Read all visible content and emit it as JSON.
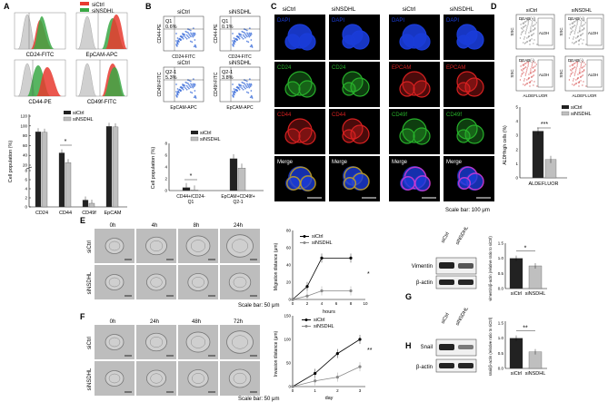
{
  "panels": {
    "A": {
      "letter": "A",
      "legend": [
        "siCtrl",
        "siNSDHL"
      ],
      "histograms": [
        "CD24-FITC",
        "EpCAM-APC",
        "CD44-PE",
        "CD49f-FITC"
      ],
      "bar_legend": [
        "siCtrl",
        "siNSDHL"
      ],
      "ylabel": "Cell population (%)",
      "yticks": [
        "0",
        "2",
        "4",
        "6",
        "8",
        "20",
        "40",
        "60",
        "80",
        "100",
        "120"
      ],
      "categories": [
        "CD24",
        "CD44",
        "CD49f",
        "EpCAM"
      ],
      "sig": "*"
    },
    "B": {
      "letter": "B",
      "plots": [
        {
          "title": "siCtrl",
          "quad": "Q1",
          "value": "0.6%",
          "ylab": "CD44-PE",
          "xlab": "CD24-FITC"
        },
        {
          "title": "siNSDHL",
          "quad": "Q1",
          "value": "0.1%",
          "ylab": "CD44-PE",
          "xlab": "CD24-FITC"
        },
        {
          "title": "siCtrl",
          "quad": "Q2-1",
          "value": "5.3%",
          "ylab": "CD49f-FITC",
          "xlab": "EpCAM-APC"
        },
        {
          "title": "siNSDHL",
          "quad": "Q2-1",
          "value": "3.8%",
          "ylab": "CD49f-FITC",
          "xlab": "EpCAM-APC"
        }
      ],
      "bar_legend": [
        "siCtrl",
        "siNSDHL"
      ],
      "ylabel": "Cell population (%)",
      "yticks": [
        "0",
        "2",
        "4",
        "6",
        "8"
      ],
      "categories": [
        "CD44+/CD24-",
        "Q1",
        "EpCAM+CD49f+",
        "Q2-1"
      ],
      "sig": "*"
    },
    "C": {
      "letter": "C",
      "col_headers": [
        "siCtrl",
        "siNSDHL",
        "siCtrl",
        "siNSDHL"
      ],
      "left_labels": [
        "DAPI",
        "CD24",
        "CD44",
        "Merge"
      ],
      "right_labels": [
        "DAPI",
        "EPCAM",
        "CD49f",
        "Merge"
      ],
      "scale": "Scale bar: 100 μm"
    },
    "D": {
      "letter": "D",
      "headers": [
        "siCtrl",
        "siNSDHL"
      ],
      "gates": [
        "DEAB(+)",
        "DEAB(+)",
        "DEAB(-)",
        "DEAB(-)"
      ],
      "gate_label": "ALDH",
      "ssc": "SSC",
      "xaxis": "ALDEFLUOR",
      "bar_legend": [
        "siCtrl",
        "siNSDHL"
      ],
      "ylabel": "ALDHhigh cells (%)",
      "yticks": [
        "0",
        "1",
        "2",
        "3",
        "4",
        "5"
      ],
      "category": "ALDEFLUOR",
      "sig": "***"
    },
    "E": {
      "letter": "E",
      "times": [
        "0h",
        "4h",
        "8h",
        "24h"
      ],
      "rows": [
        "siCtrl",
        "siNSDHL"
      ],
      "scale": "Scale bar: 50 μm",
      "legend": [
        "siCtrl",
        "siNSDHL"
      ],
      "ylabel": "Migration distance (μm)",
      "xlabel": "hours",
      "yticks": [
        "0",
        "20",
        "40",
        "60",
        "80"
      ],
      "xticks": [
        "0",
        "2",
        "4",
        "6",
        "8",
        "10"
      ],
      "sig": "*"
    },
    "F": {
      "letter": "F",
      "times": [
        "0h",
        "24h",
        "48h",
        "72h"
      ],
      "rows": [
        "siCtrl",
        "siNSDHL"
      ],
      "scale": "Scale bar: 50 μm",
      "legend": [
        "siCtrl",
        "siNSDHL"
      ],
      "ylabel": "Invasion distance (μm)",
      "xlabel": "day",
      "yticks": [
        "0",
        "50",
        "100",
        "150"
      ],
      "xticks": [
        "0",
        "1",
        "2",
        "3"
      ],
      "sig": "**"
    },
    "G": {
      "letter": "G",
      "lanes": [
        "siCtrl",
        "siNSDHL"
      ],
      "bands": [
        "Vimentin",
        "β-actin"
      ],
      "ylabel": "vimentin/β-actin (relative ratio to siCtrl)",
      "yticks": [
        "0.0",
        "0.5",
        "1.0",
        "1.5"
      ],
      "categories": [
        "siCtrl",
        "siNSDHL"
      ],
      "sig": "*"
    },
    "H": {
      "letter": "H",
      "lanes": [
        "siCtrl",
        "siNSDHL"
      ],
      "bands": [
        "Snail",
        "β-actin"
      ],
      "ylabel": "snail/β-actin (relative ratio to siCtrl)",
      "yticks": [
        "0.0",
        "0.5",
        "1.0",
        "1.5"
      ],
      "categories": [
        "siCtrl",
        "siNSDHL"
      ],
      "sig": "**"
    }
  },
  "colors": {
    "ctrl": "#e8392f",
    "nsdhl": "#3aa845",
    "bar_ctrl": "#222222",
    "bar_nsdhl": "#bfbfbf",
    "dapi": "#1a3cd8",
    "green": "#27b02a",
    "red": "#d62020"
  },
  "chart_data": [
    {
      "type": "bar",
      "panel": "A",
      "categories": [
        "CD24",
        "CD44",
        "CD49f",
        "EpCAM"
      ],
      "series": [
        {
          "name": "siCtrl",
          "values": [
            88,
            45,
            1.5,
            99
          ]
        },
        {
          "name": "siNSDHL",
          "values": [
            87,
            25,
            0.8,
            98
          ]
        }
      ],
      "ylabel": "Cell population (%)"
    },
    {
      "type": "bar",
      "panel": "B",
      "categories": [
        "CD44+/CD24- Q1",
        "EpCAM+CD49f+ Q2-1"
      ],
      "series": [
        {
          "name": "siCtrl",
          "values": [
            0.5,
            5.4
          ]
        },
        {
          "name": "siNSDHL",
          "values": [
            0.1,
            3.8
          ]
        }
      ],
      "ylabel": "Cell population (%)",
      "ylim": [
        0,
        8
      ]
    },
    {
      "type": "bar",
      "panel": "D",
      "categories": [
        "ALDEFLUOR"
      ],
      "series": [
        {
          "name": "siCtrl",
          "values": [
            3.3
          ]
        },
        {
          "name": "siNSDHL",
          "values": [
            1.3
          ]
        }
      ],
      "ylabel": "ALDHhigh cells (%)",
      "ylim": [
        0,
        5
      ]
    },
    {
      "type": "line",
      "panel": "E",
      "x": [
        0,
        4,
        8,
        24
      ],
      "series": [
        {
          "name": "siCtrl",
          "values": [
            0,
            15,
            48,
            48
          ]
        },
        {
          "name": "siNSDHL",
          "values": [
            0,
            4,
            10,
            10
          ]
        }
      ],
      "xlabel": "hours",
      "ylabel": "Migration distance (μm)",
      "ylim": [
        0,
        80
      ]
    },
    {
      "type": "line",
      "panel": "F",
      "x": [
        0,
        1,
        2,
        3
      ],
      "series": [
        {
          "name": "siCtrl",
          "values": [
            0,
            28,
            70,
            100
          ]
        },
        {
          "name": "siNSDHL",
          "values": [
            0,
            12,
            20,
            42
          ]
        }
      ],
      "xlabel": "day",
      "ylabel": "Invasion distance (μm)",
      "ylim": [
        0,
        150
      ]
    },
    {
      "type": "bar",
      "panel": "G",
      "categories": [
        "siCtrl",
        "siNSDHL"
      ],
      "values": [
        1.0,
        0.75
      ],
      "ylabel": "vimentin/β-actin (relative ratio to siCtrl)",
      "ylim": [
        0,
        1.5
      ]
    },
    {
      "type": "bar",
      "panel": "H",
      "categories": [
        "siCtrl",
        "siNSDHL"
      ],
      "values": [
        1.0,
        0.55
      ],
      "ylabel": "snail/β-actin (relative ratio to siCtrl)",
      "ylim": [
        0,
        1.5
      ]
    }
  ]
}
